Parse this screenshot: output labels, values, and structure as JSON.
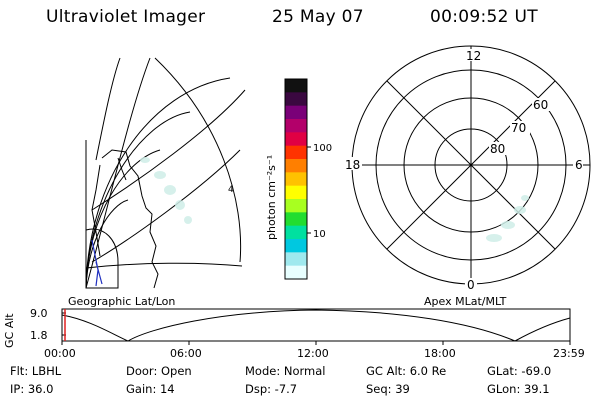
{
  "header": {
    "instrument": "Ultraviolet Imager",
    "date": "25 May 07",
    "time": "00:09:52 UT"
  },
  "colorbar": {
    "unit_label": "photon cm⁻²s⁻¹",
    "tick_labels": [
      "100",
      "10"
    ],
    "colors": [
      "#111111",
      "#3a0840",
      "#7a0078",
      "#b3006a",
      "#e00044",
      "#ff3300",
      "#ff7f00",
      "#ffc200",
      "#ffff00",
      "#a8ff20",
      "#22dd30",
      "#00e0a0",
      "#00c8e0",
      "#9fe9ee",
      "#e8ffff"
    ]
  },
  "polar_plot": {
    "mlt_labels": {
      "top": "12",
      "left": "18",
      "right": "6",
      "bottom": "0"
    },
    "lat_labels": [
      "60",
      "70",
      "80"
    ],
    "map_label": "Apex MLat/MLT"
  },
  "geo_plot": {
    "map_label": "Geographic Lat/Lon",
    "lon_marker": "4"
  },
  "altitude_strip": {
    "axis_label": "GC Alt",
    "y_ticks": [
      "9.0",
      "1.8"
    ],
    "x_ticks": [
      "00:00",
      "06:00",
      "12:00",
      "18:00",
      "23:59"
    ]
  },
  "info": {
    "row1": {
      "flt": "Flt: LBHL",
      "door": "Door: Open",
      "mode": "Mode: Normal",
      "gcalt": "GC Alt: 6.0 Re",
      "glat": "GLat: -69.0"
    },
    "row2": {
      "ip": "IP: 36.0",
      "gain": "Gain: 14",
      "dsp": "Dsp:   -7.7",
      "seq": "Seq: 39",
      "glon": "GLon:  39.1"
    }
  }
}
